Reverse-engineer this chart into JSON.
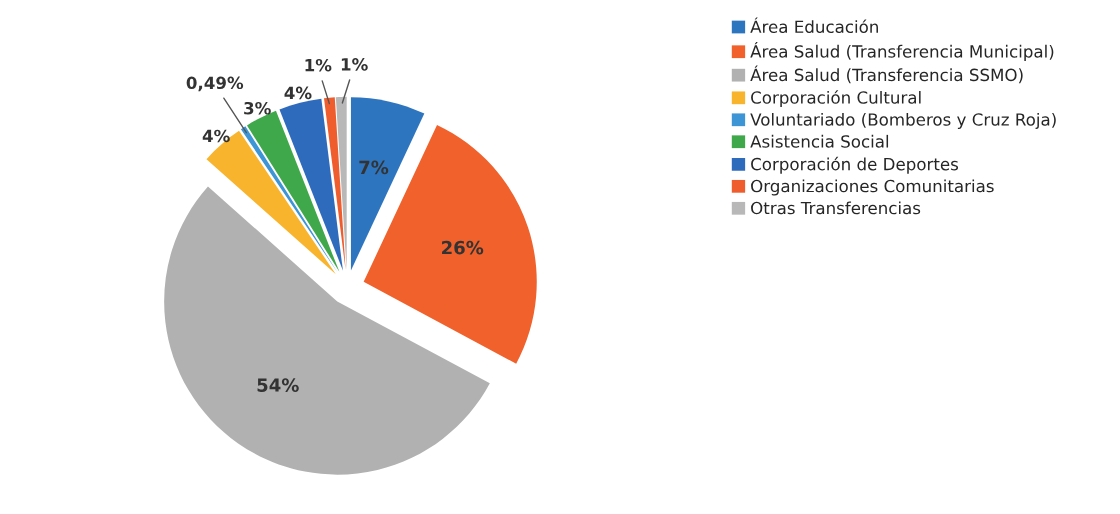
{
  "chart_data": {
    "type": "pie",
    "categories": [
      "Área Educación",
      "Área Salud (Transferencia Municipal)",
      "Área Salud (Transferencia SSMO)",
      "Corporación Cultural",
      "Voluntariado (Bomberos y Cruz Roja)",
      "Asistencia Social",
      "Corporación de Deportes",
      "Organizaciones Comunitarias",
      "Otras Transferencias"
    ],
    "values": [
      7,
      26,
      54,
      4,
      0.49,
      3,
      4,
      1,
      1
    ],
    "value_labels": [
      "7%",
      "26%",
      "54%",
      "4%",
      "0,49%",
      "3%",
      "4%",
      "1%",
      "1%"
    ],
    "colors": [
      "#2e75c0",
      "#f0612c",
      "#b1b1b1",
      "#f9b42d",
      "#3d95d6",
      "#3ea84a",
      "#2e6bbd",
      "#ef5d2e",
      "#b8b8b8"
    ],
    "legend": "right"
  }
}
